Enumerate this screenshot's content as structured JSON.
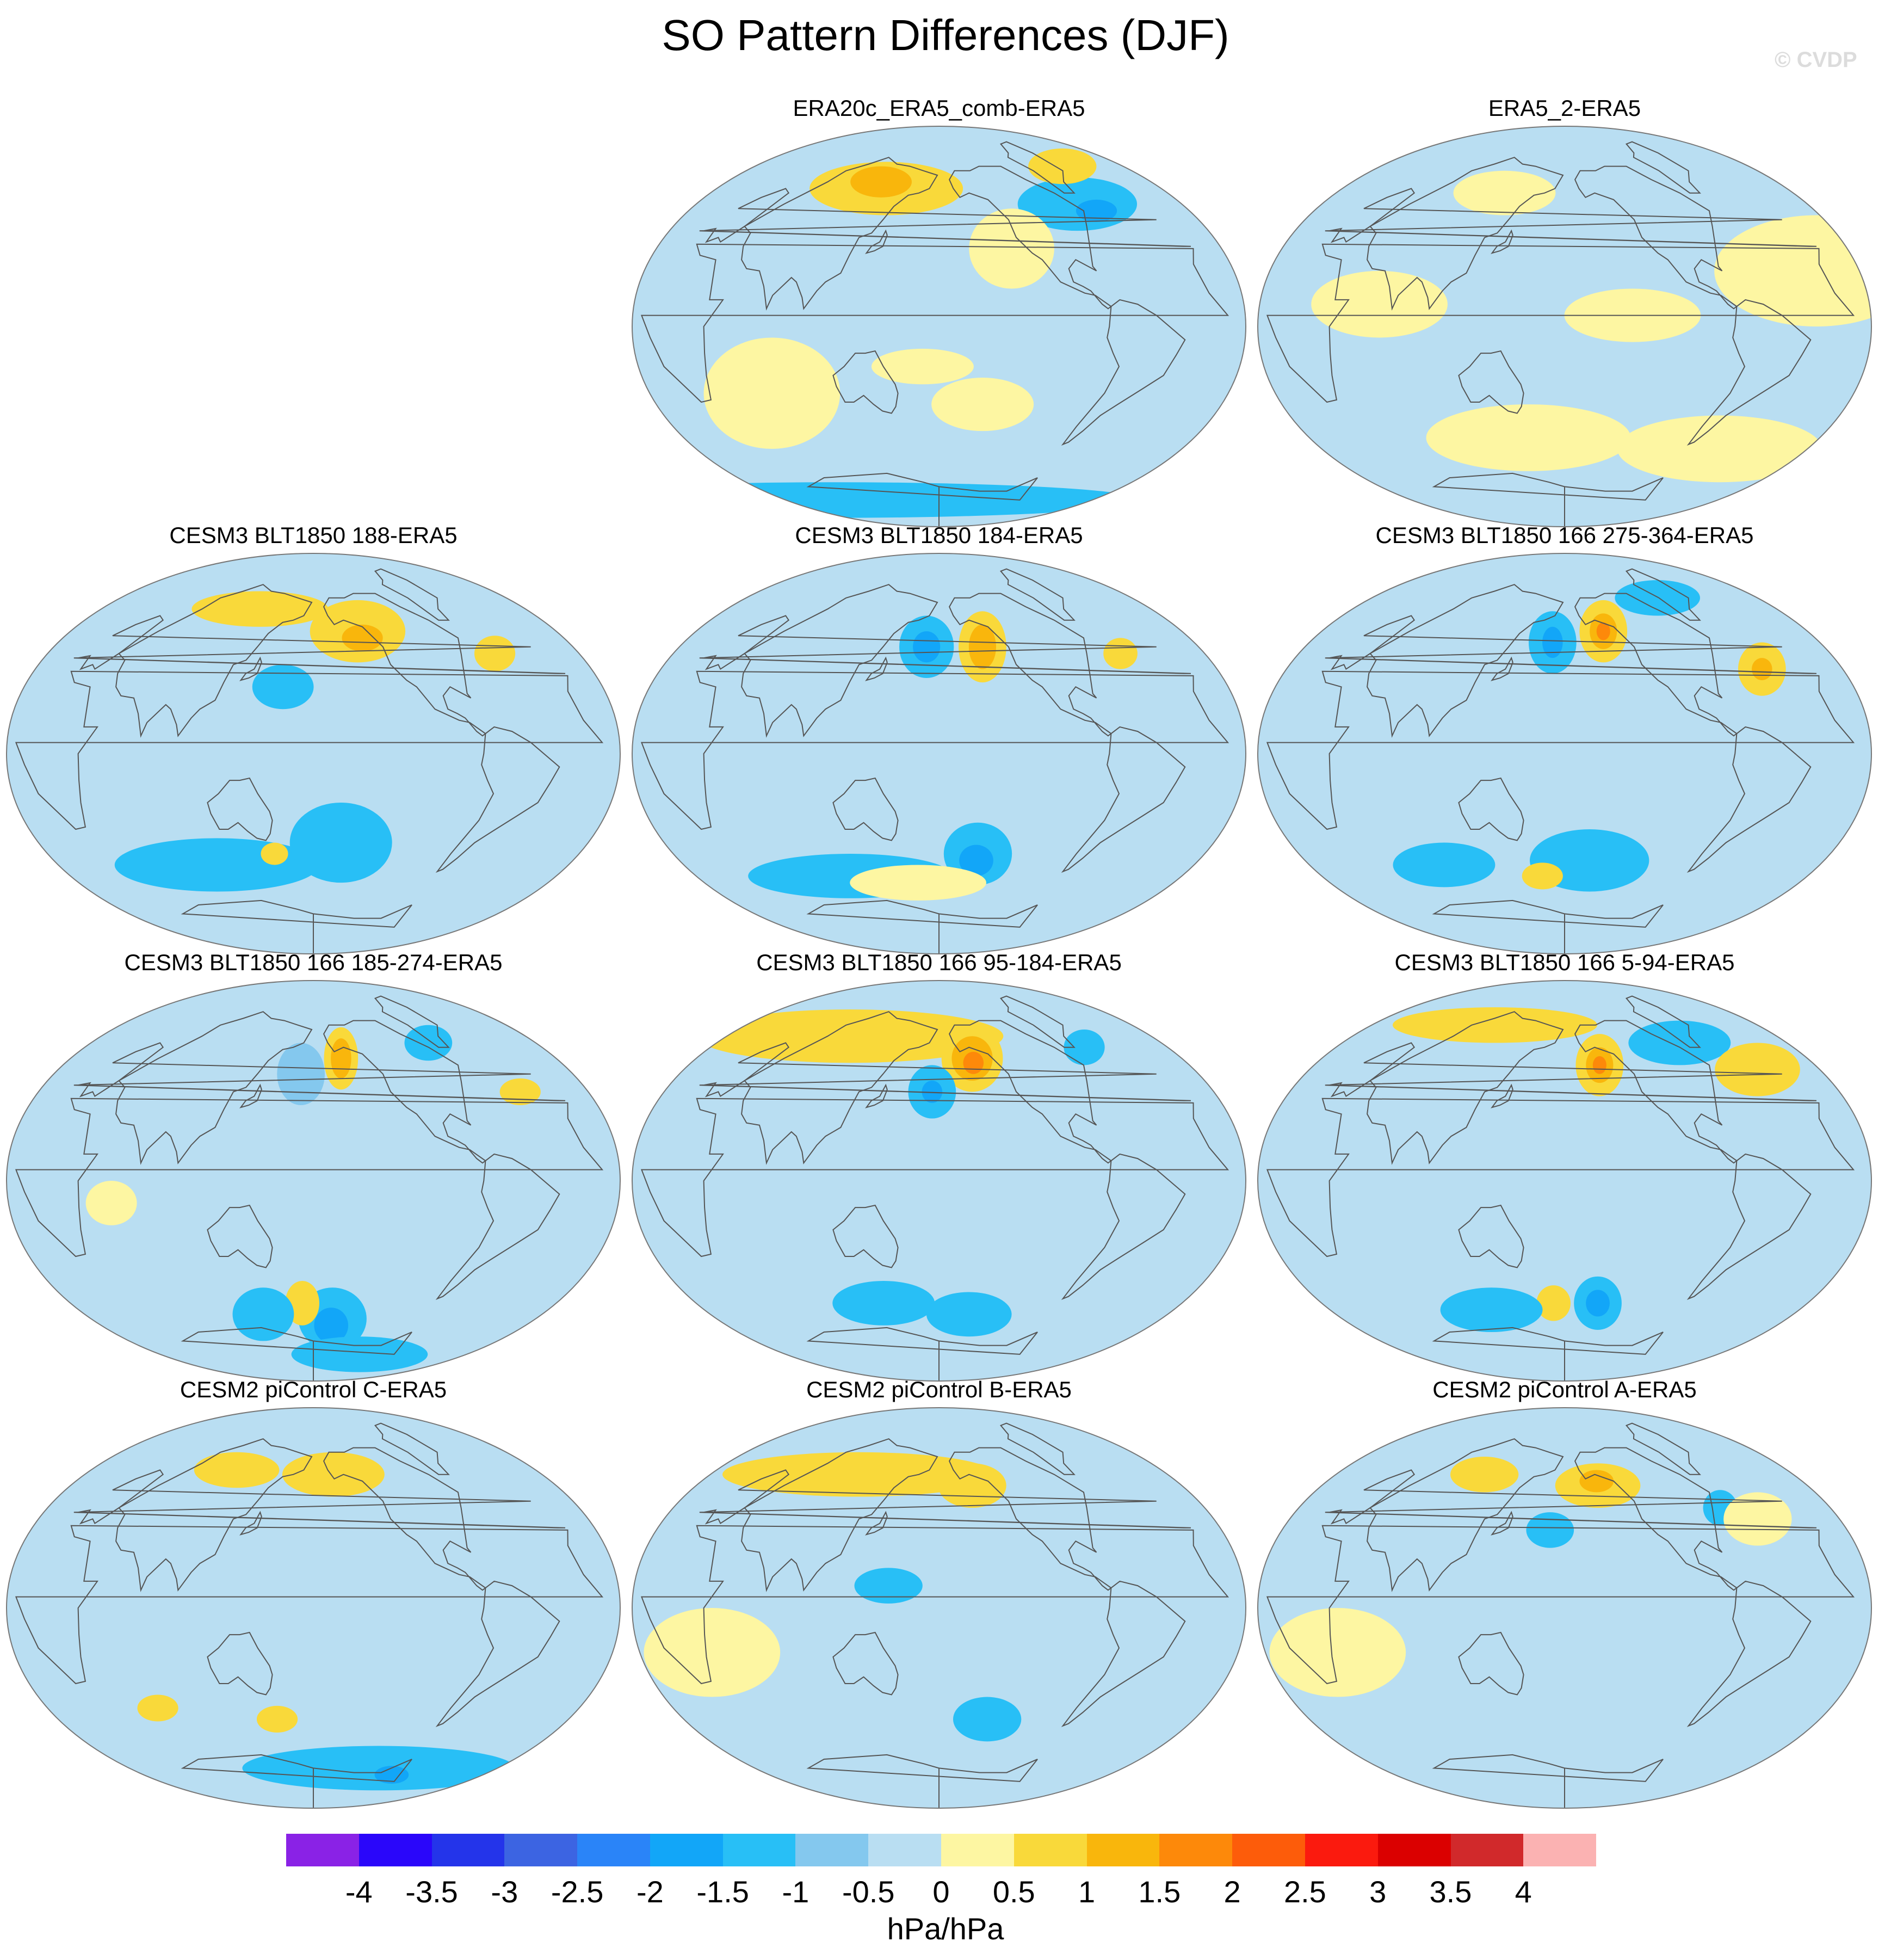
{
  "title": "SO Pattern Differences (DJF)",
  "watermark": "© CVDP",
  "panels": [
    {
      "title": "ERA20c_ERA5_comb-ERA5",
      "features": [
        {
          "type": "pos",
          "level": 2,
          "lon": 125,
          "lat": 62,
          "rx": 45,
          "ry": 12
        },
        {
          "type": "pos",
          "level": 3,
          "lon": 115,
          "lat": 65,
          "rx": 18,
          "ry": 7
        },
        {
          "type": "neg",
          "level": 2,
          "lon": -55,
          "lat": 55,
          "rx": 35,
          "ry": 12
        },
        {
          "type": "neg",
          "level": 3,
          "lon": -45,
          "lat": 52,
          "rx": 12,
          "ry": 5
        },
        {
          "type": "pos",
          "level": 2,
          "lon": -10,
          "lat": 72,
          "rx": 20,
          "ry": 8
        },
        {
          "type": "pos",
          "level": 1,
          "lon": -130,
          "lat": 35,
          "rx": 25,
          "ry": 18
        },
        {
          "type": "pos",
          "level": 1,
          "lon": 170,
          "lat": -18,
          "rx": 30,
          "ry": 8
        },
        {
          "type": "pos",
          "level": 1,
          "lon": -150,
          "lat": -35,
          "rx": 30,
          "ry": 12
        },
        {
          "type": "pos",
          "level": 1,
          "lon": 70,
          "lat": -30,
          "rx": 40,
          "ry": 25
        },
        {
          "type": "neg",
          "level": 2,
          "lon": 0,
          "lat": -78,
          "rx": 180,
          "ry": 8
        }
      ]
    },
    {
      "title": "ERA5_2-ERA5",
      "features": [
        {
          "type": "pos",
          "level": 1,
          "lon": -20,
          "lat": 25,
          "rx": 60,
          "ry": 25
        },
        {
          "type": "pos",
          "level": 1,
          "lon": 70,
          "lat": 10,
          "rx": 40,
          "ry": 15
        },
        {
          "type": "pos",
          "level": 1,
          "lon": -140,
          "lat": 5,
          "rx": 40,
          "ry": 12
        },
        {
          "type": "pos",
          "level": 1,
          "lon": 150,
          "lat": -50,
          "rx": 60,
          "ry": 15
        },
        {
          "type": "pos",
          "level": 1,
          "lon": -40,
          "lat": -55,
          "rx": 60,
          "ry": 15
        },
        {
          "type": "pos",
          "level": 1,
          "lon": 120,
          "lat": 60,
          "rx": 30,
          "ry": 10
        }
      ]
    },
    {
      "title": "CESM3 BLT1850 188-ERA5",
      "features": [
        {
          "type": "pos",
          "level": 2,
          "lon": -140,
          "lat": 55,
          "rx": 28,
          "ry": 14
        },
        {
          "type": "pos",
          "level": 3,
          "lon": -138,
          "lat": 52,
          "rx": 12,
          "ry": 6
        },
        {
          "type": "pos",
          "level": 2,
          "lon": -40,
          "lat": 45,
          "rx": 12,
          "ry": 8
        },
        {
          "type": "pos",
          "level": 2,
          "lon": 120,
          "lat": 65,
          "rx": 40,
          "ry": 8
        },
        {
          "type": "neg",
          "level": 2,
          "lon": 160,
          "lat": 30,
          "rx": 18,
          "ry": 10
        },
        {
          "type": "neg",
          "level": 2,
          "lon": 100,
          "lat": -50,
          "rx": 60,
          "ry": 12
        },
        {
          "type": "neg",
          "level": 2,
          "lon": -160,
          "lat": -40,
          "rx": 30,
          "ry": 18
        },
        {
          "type": "pos",
          "level": 2,
          "lon": 150,
          "lat": -45,
          "rx": 8,
          "ry": 5
        }
      ]
    },
    {
      "title": "CESM3 BLT1850 184-ERA5",
      "features": [
        {
          "type": "pos",
          "level": 2,
          "lon": -145,
          "lat": 48,
          "rx": 14,
          "ry": 16
        },
        {
          "type": "pos",
          "level": 3,
          "lon": -145,
          "lat": 48,
          "rx": 8,
          "ry": 10
        },
        {
          "type": "neg",
          "level": 2,
          "lon": 170,
          "lat": 48,
          "rx": 16,
          "ry": 14
        },
        {
          "type": "neg",
          "level": 3,
          "lon": 170,
          "lat": 48,
          "rx": 8,
          "ry": 7
        },
        {
          "type": "pos",
          "level": 2,
          "lon": -40,
          "lat": 45,
          "rx": 10,
          "ry": 7
        },
        {
          "type": "neg",
          "level": 2,
          "lon": -150,
          "lat": -45,
          "rx": 20,
          "ry": 14
        },
        {
          "type": "neg",
          "level": 3,
          "lon": -150,
          "lat": -48,
          "rx": 10,
          "ry": 7
        },
        {
          "type": "neg",
          "level": 2,
          "lon": 100,
          "lat": -55,
          "rx": 60,
          "ry": 10
        },
        {
          "type": "pos",
          "level": 1,
          "lon": 160,
          "lat": -58,
          "rx": 40,
          "ry": 8
        }
      ]
    },
    {
      "title": "CESM3 BLT1850 166 275-364-ERA5",
      "features": [
        {
          "type": "pos",
          "level": 2,
          "lon": -145,
          "lat": 55,
          "rx": 14,
          "ry": 14
        },
        {
          "type": "pos",
          "level": 3,
          "lon": -145,
          "lat": 55,
          "rx": 8,
          "ry": 8
        },
        {
          "type": "pos",
          "level": 4,
          "lon": -145,
          "lat": 55,
          "rx": 4,
          "ry": 4
        },
        {
          "type": "neg",
          "level": 2,
          "lon": 170,
          "lat": 50,
          "rx": 14,
          "ry": 14
        },
        {
          "type": "neg",
          "level": 3,
          "lon": 170,
          "lat": 50,
          "rx": 6,
          "ry": 7
        },
        {
          "type": "pos",
          "level": 2,
          "lon": -40,
          "lat": 38,
          "rx": 14,
          "ry": 12
        },
        {
          "type": "pos",
          "level": 3,
          "lon": -40,
          "lat": 38,
          "rx": 6,
          "ry": 5
        },
        {
          "type": "neg",
          "level": 2,
          "lon": -60,
          "lat": 70,
          "rx": 25,
          "ry": 8
        },
        {
          "type": "neg",
          "level": 2,
          "lon": -160,
          "lat": -48,
          "rx": 35,
          "ry": 14
        },
        {
          "type": "pos",
          "level": 2,
          "lon": 160,
          "lat": -55,
          "rx": 12,
          "ry": 6
        },
        {
          "type": "neg",
          "level": 2,
          "lon": 80,
          "lat": -50,
          "rx": 30,
          "ry": 10
        }
      ]
    },
    {
      "title": "CESM3 BLT1850 166 185-274-ERA5",
      "features": [
        {
          "type": "pos",
          "level": 2,
          "lon": -155,
          "lat": 55,
          "rx": 10,
          "ry": 14
        },
        {
          "type": "pos",
          "level": 3,
          "lon": -155,
          "lat": 55,
          "rx": 6,
          "ry": 9
        },
        {
          "type": "neg",
          "level": 1,
          "lon": 170,
          "lat": 48,
          "rx": 14,
          "ry": 14
        },
        {
          "type": "neg",
          "level": 2,
          "lon": -60,
          "lat": 62,
          "rx": 14,
          "ry": 8
        },
        {
          "type": "pos",
          "level": 2,
          "lon": -30,
          "lat": 40,
          "rx": 12,
          "ry": 6
        },
        {
          "type": "neg",
          "level": 2,
          "lon": -160,
          "lat": -62,
          "rx": 20,
          "ry": 14
        },
        {
          "type": "neg",
          "level": 3,
          "lon": -160,
          "lat": -65,
          "rx": 10,
          "ry": 8
        },
        {
          "type": "pos",
          "level": 2,
          "lon": 170,
          "lat": -55,
          "rx": 10,
          "ry": 10
        },
        {
          "type": "neg",
          "level": 2,
          "lon": 130,
          "lat": -60,
          "rx": 18,
          "ry": 12
        },
        {
          "type": "pos",
          "level": 1,
          "lon": 60,
          "lat": -10,
          "rx": 15,
          "ry": 10
        },
        {
          "type": "neg",
          "level": 2,
          "lon": -100,
          "lat": -78,
          "rx": 40,
          "ry": 8
        }
      ]
    },
    {
      "title": "CESM3 BLT1850 166 95-184-ERA5",
      "features": [
        {
          "type": "pos",
          "level": 2,
          "lon": 80,
          "lat": 65,
          "rx": 90,
          "ry": 12
        },
        {
          "type": "pos",
          "level": 2,
          "lon": -150,
          "lat": 55,
          "rx": 18,
          "ry": 15
        },
        {
          "type": "pos",
          "level": 3,
          "lon": -150,
          "lat": 55,
          "rx": 12,
          "ry": 10
        },
        {
          "type": "pos",
          "level": 4,
          "lon": -150,
          "lat": 53,
          "rx": 6,
          "ry": 5
        },
        {
          "type": "neg",
          "level": 2,
          "lon": 175,
          "lat": 40,
          "rx": 14,
          "ry": 12
        },
        {
          "type": "neg",
          "level": 3,
          "lon": 175,
          "lat": 40,
          "rx": 6,
          "ry": 5
        },
        {
          "type": "neg",
          "level": 2,
          "lon": -35,
          "lat": 60,
          "rx": 12,
          "ry": 8
        },
        {
          "type": "neg",
          "level": 2,
          "lon": 130,
          "lat": -55,
          "rx": 30,
          "ry": 10
        },
        {
          "type": "neg",
          "level": 2,
          "lon": -150,
          "lat": -60,
          "rx": 25,
          "ry": 10
        }
      ]
    },
    {
      "title": "CESM3 BLT1850 166 5-94-ERA5",
      "features": [
        {
          "type": "pos",
          "level": 2,
          "lon": -150,
          "lat": 52,
          "rx": 14,
          "ry": 14
        },
        {
          "type": "pos",
          "level": 3,
          "lon": -150,
          "lat": 52,
          "rx": 8,
          "ry": 8
        },
        {
          "type": "pos",
          "level": 4,
          "lon": -150,
          "lat": 52,
          "rx": 4,
          "ry": 4
        },
        {
          "type": "neg",
          "level": 2,
          "lon": -60,
          "lat": 62,
          "rx": 30,
          "ry": 10
        },
        {
          "type": "pos",
          "level": 2,
          "lon": -20,
          "lat": 50,
          "rx": 25,
          "ry": 12
        },
        {
          "type": "pos",
          "level": 2,
          "lon": 90,
          "lat": 70,
          "rx": 60,
          "ry": 8
        },
        {
          "type": "neg",
          "level": 2,
          "lon": -150,
          "lat": -55,
          "rx": 14,
          "ry": 12
        },
        {
          "type": "neg",
          "level": 3,
          "lon": -150,
          "lat": -55,
          "rx": 7,
          "ry": 6
        },
        {
          "type": "pos",
          "level": 2,
          "lon": 170,
          "lat": -55,
          "rx": 10,
          "ry": 8
        },
        {
          "type": "neg",
          "level": 2,
          "lon": 110,
          "lat": -58,
          "rx": 30,
          "ry": 10
        }
      ]
    },
    {
      "title": "CESM2 piControl C-ERA5",
      "features": [
        {
          "type": "pos",
          "level": 2,
          "lon": -160,
          "lat": 60,
          "rx": 30,
          "ry": 10
        },
        {
          "type": "pos",
          "level": 2,
          "lon": 100,
          "lat": 62,
          "rx": 25,
          "ry": 8
        },
        {
          "type": "pos",
          "level": 2,
          "lon": 150,
          "lat": -50,
          "rx": 12,
          "ry": 6
        },
        {
          "type": "pos",
          "level": 2,
          "lon": 60,
          "lat": -45,
          "rx": 12,
          "ry": 6
        },
        {
          "type": "neg",
          "level": 2,
          "lon": -90,
          "lat": -72,
          "rx": 80,
          "ry": 10
        },
        {
          "type": "neg",
          "level": 3,
          "lon": -60,
          "lat": -75,
          "rx": 10,
          "ry": 4
        }
      ]
    },
    {
      "title": "CESM2 piControl B-ERA5",
      "features": [
        {
          "type": "pos",
          "level": 2,
          "lon": 100,
          "lat": 60,
          "rx": 80,
          "ry": 10
        },
        {
          "type": "pos",
          "level": 2,
          "lon": -150,
          "lat": 55,
          "rx": 20,
          "ry": 10
        },
        {
          "type": "neg",
          "level": 2,
          "lon": 150,
          "lat": 10,
          "rx": 20,
          "ry": 8
        },
        {
          "type": "neg",
          "level": 2,
          "lon": -140,
          "lat": -50,
          "rx": 20,
          "ry": 10
        },
        {
          "type": "pos",
          "level": 1,
          "lon": 40,
          "lat": -20,
          "rx": 40,
          "ry": 20
        }
      ]
    },
    {
      "title": "CESM2 piControl A-ERA5",
      "features": [
        {
          "type": "pos",
          "level": 2,
          "lon": -150,
          "lat": 55,
          "rx": 25,
          "ry": 10
        },
        {
          "type": "pos",
          "level": 3,
          "lon": -150,
          "lat": 57,
          "rx": 10,
          "ry": 5
        },
        {
          "type": "pos",
          "level": 2,
          "lon": 100,
          "lat": 60,
          "rx": 20,
          "ry": 8
        },
        {
          "type": "neg",
          "level": 2,
          "lon": 170,
          "lat": 35,
          "rx": 14,
          "ry": 8
        },
        {
          "type": "neg",
          "level": 2,
          "lon": -60,
          "lat": 45,
          "rx": 10,
          "ry": 8
        },
        {
          "type": "pos",
          "level": 1,
          "lon": -40,
          "lat": 40,
          "rx": 20,
          "ry": 12
        },
        {
          "type": "pos",
          "level": 1,
          "lon": 40,
          "lat": -20,
          "rx": 40,
          "ry": 20
        }
      ]
    }
  ],
  "colorbar": {
    "colors": [
      "#8a22e6",
      "#2a06fa",
      "#2434ea",
      "#3c64e2",
      "#2a84f8",
      "#12a6f8",
      "#28bff6",
      "#84c8ee",
      "#b9def2",
      "#fdf6a2",
      "#f9d93a",
      "#f9b60c",
      "#fd890a",
      "#fd5c0a",
      "#fb1a0e",
      "#db0000",
      "#d1292b",
      "#fbb2b2"
    ],
    "labels": [
      "-4",
      "-3.5",
      "-3",
      "-2.5",
      "-2",
      "-1.5",
      "-1",
      "-0.5",
      "0",
      "0.5",
      "1",
      "1.5",
      "2",
      "2.5",
      "3",
      "3.5",
      "4"
    ],
    "units": "hPa/hPa"
  }
}
